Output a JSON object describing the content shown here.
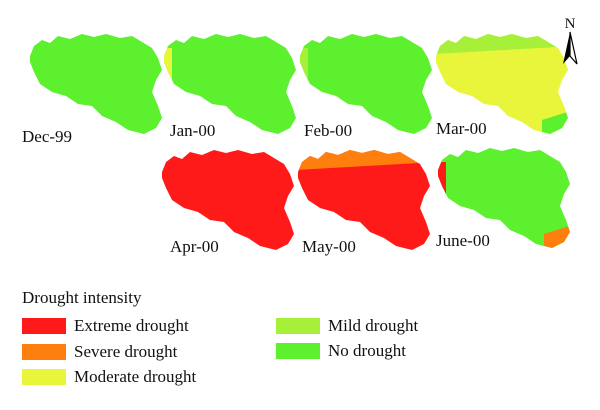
{
  "north_label": "N",
  "legend": {
    "title": "Drought intensity",
    "items": [
      {
        "label": "Extreme drought",
        "color": "#ff1a1a"
      },
      {
        "label": "Severe drought",
        "color": "#ff7f0e"
      },
      {
        "label": "Moderate drought",
        "color": "#e8f53a"
      },
      {
        "label": "Mild drought",
        "color": "#a6f03a"
      },
      {
        "label": "No drought",
        "color": "#5cf02e"
      }
    ]
  },
  "maps": [
    {
      "label": "Dec-99",
      "base": "No drought",
      "patches": []
    },
    {
      "label": "Jan-00",
      "base": "No drought",
      "patches": [
        {
          "class": "Moderate drought",
          "where": "west edge"
        }
      ]
    },
    {
      "label": "Feb-00",
      "base": "No drought",
      "patches": [
        {
          "class": "Mild drought",
          "where": "west edge"
        }
      ]
    },
    {
      "label": "Mar-00",
      "base": "Moderate drought",
      "patches": [
        {
          "class": "Mild drought",
          "where": "north edge"
        },
        {
          "class": "No drought",
          "where": "south-east tip"
        }
      ]
    },
    {
      "label": "Apr-00",
      "base": "Extreme drought",
      "patches": []
    },
    {
      "label": "May-00",
      "base": "Extreme drought",
      "patches": [
        {
          "class": "Severe drought",
          "where": "north edge"
        }
      ]
    },
    {
      "label": "June-00",
      "base": "No drought",
      "patches": [
        {
          "class": "Extreme drought",
          "where": "west edge"
        },
        {
          "class": "Severe drought",
          "where": "south-east tip"
        }
      ]
    }
  ]
}
